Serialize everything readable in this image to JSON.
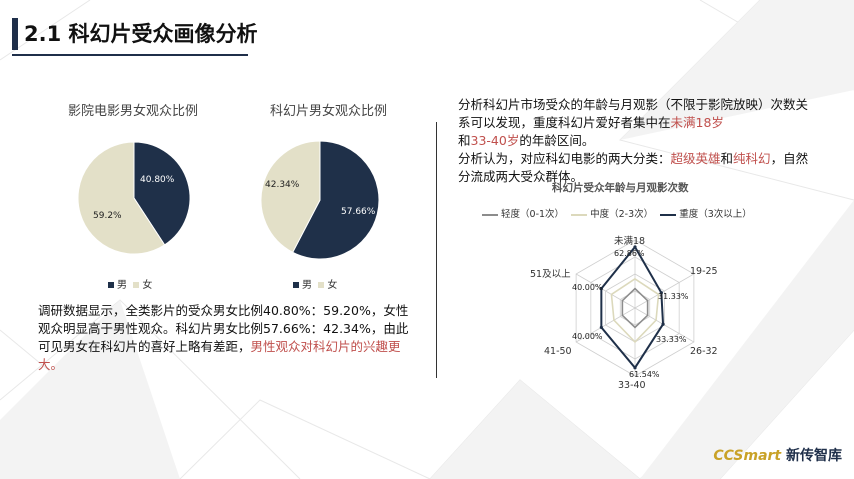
{
  "header": {
    "title": "2.1 科幻片受众画像分析"
  },
  "pie_left": {
    "title": "影院电影男女观众比例",
    "legend": [
      "男",
      "女"
    ],
    "chart_data": {
      "type": "pie",
      "categories": [
        "男",
        "女"
      ],
      "values": [
        40.8,
        59.2
      ],
      "labels": [
        "40.80%",
        "59.2%"
      ],
      "colors": [
        "#1f3049",
        "#e3e0c8"
      ]
    }
  },
  "pie_right": {
    "title": "科幻片男女观众比例",
    "legend": [
      "男",
      "女"
    ],
    "chart_data": {
      "type": "pie",
      "categories": [
        "男",
        "女"
      ],
      "values": [
        57.66,
        42.34
      ],
      "labels": [
        "57.66%",
        "42.34%"
      ],
      "colors": [
        "#1f3049",
        "#e3e0c8"
      ]
    }
  },
  "left_text": {
    "part1": "调研数据显示，全类影片的受众男女比例40.80%：59.20%，女性观众明显高于男性观众。科幻片男女比例57.66%：42.34%，由此可见男女在科幻片的喜好上略有差距，",
    "highlight": "男性观众对科幻片的兴趣更大。"
  },
  "right_text": {
    "p1_a": "分析科幻片市场受众的年龄与月观影（不限于影院放映）次数关系可以发现，重度科幻片爱好者集中在",
    "p1_red1": "未满18岁",
    "p1_b": "和",
    "p1_red2": "33-40岁",
    "p1_c": "的年龄区间。",
    "p2_a": "分析认为，对应科幻电影的两大分类：",
    "p2_red1": "超级英雄",
    "p2_b": "和",
    "p2_red2": "纯科幻",
    "p2_c": "，自然分流成两大受众群体。"
  },
  "radar": {
    "chart_data": {
      "type": "radar",
      "title": "科幻片受众年龄与月观影次数",
      "axes": [
        "未满18",
        "19-25",
        "26-32",
        "33-40",
        "41-50",
        "51及以上"
      ],
      "series": [
        {
          "name": "轻度（0-1次）",
          "values": [
            20,
            15,
            15,
            20,
            15,
            15
          ],
          "color": "#8c8c8c"
        },
        {
          "name": "中度（2-3次）",
          "values": [
            30,
            28,
            25,
            35,
            25,
            28
          ],
          "color": "#dcd9bc"
        },
        {
          "name": "重度（3次以上）",
          "values": [
            62.86,
            31.33,
            33.33,
            61.54,
            40.0,
            40.0
          ],
          "labels": [
            "62.86%",
            "31.33%",
            "33.33%",
            "61.54%",
            "40.00%",
            "40.00%"
          ],
          "color": "#1f3049"
        }
      ],
      "rmax": 70
    }
  },
  "footer": {
    "brand": "CCSmart",
    "brand_cn": "新传智库",
    "brand_color": "#c9a227"
  }
}
